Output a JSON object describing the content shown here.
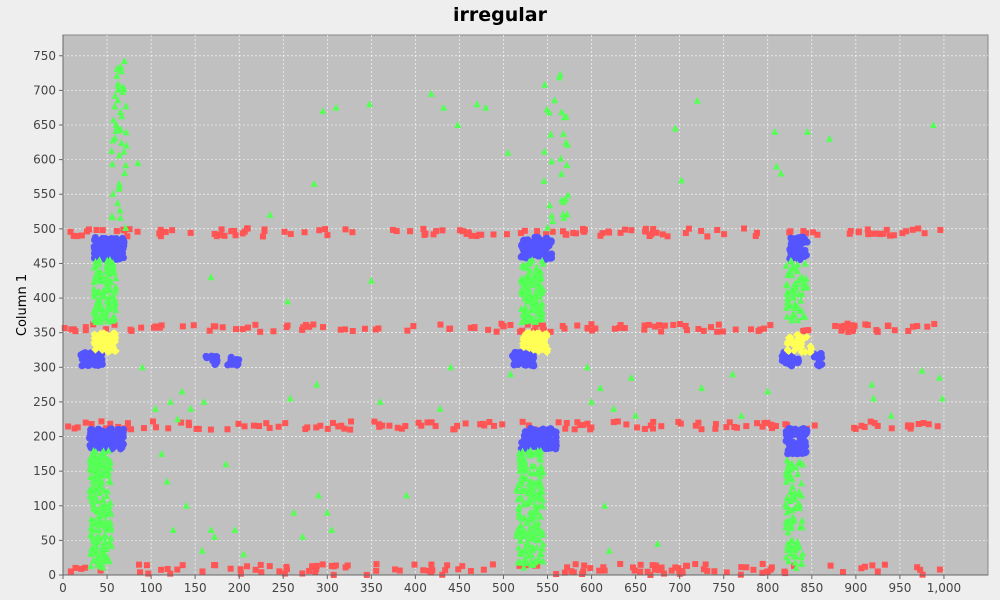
{
  "chart_data": {
    "type": "scatter",
    "title": "irregular",
    "xlabel": "",
    "ylabel": "Column 1",
    "xlim": [
      0,
      1050
    ],
    "ylim": [
      0,
      780
    ],
    "x_ticks": [
      0,
      50,
      100,
      150,
      200,
      250,
      300,
      350,
      400,
      450,
      500,
      550,
      600,
      650,
      700,
      750,
      800,
      850,
      900,
      950,
      1000
    ],
    "x_tick_labels": [
      "0",
      "50",
      "100",
      "150",
      "200",
      "250",
      "300",
      "350",
      "400",
      "450",
      "500",
      "550",
      "600",
      "650",
      "700",
      "750",
      "800",
      "850",
      "900",
      "950",
      "1,000"
    ],
    "y_ticks": [
      0,
      50,
      100,
      150,
      200,
      250,
      300,
      350,
      400,
      450,
      500,
      550,
      600,
      650,
      700,
      750
    ],
    "grid": true,
    "legend": "none",
    "colors": {
      "background": "#c0c0c0",
      "red": "#ff5555",
      "blue": "#5555ff",
      "green": "#55ff55",
      "yellow": "#ffff55"
    },
    "series": [
      {
        "marker": "square",
        "color": "#ff5555",
        "clusters": [
          {
            "y_center": 8,
            "y_spread": 8,
            "x_range": [
              0,
              1000
            ],
            "count": 130
          },
          {
            "y_center": 216,
            "y_spread": 6,
            "x_range": [
              0,
              1000
            ],
            "count": 130
          },
          {
            "y_center": 357,
            "y_spread": 6,
            "x_range": [
              0,
              1000
            ],
            "count": 130
          },
          {
            "y_center": 495,
            "y_spread": 6,
            "x_range": [
              0,
              1000
            ],
            "count": 130
          }
        ]
      },
      {
        "marker": "circle",
        "color": "#5555ff",
        "clusters": [
          {
            "x_range": [
              30,
              70
            ],
            "y_range": [
              182,
              212
            ],
            "count": 120
          },
          {
            "x_range": [
              520,
              560
            ],
            "y_range": [
              182,
              212
            ],
            "count": 120
          },
          {
            "x_range": [
              820,
              845
            ],
            "y_range": [
              175,
              212
            ],
            "count": 80
          },
          {
            "x_range": [
              35,
              70
            ],
            "y_range": [
              455,
              488
            ],
            "count": 100
          },
          {
            "x_range": [
              520,
              555
            ],
            "y_range": [
              455,
              488
            ],
            "count": 100
          },
          {
            "x_range": [
              825,
              845
            ],
            "y_range": [
              455,
              488
            ],
            "count": 50
          },
          {
            "x_range": [
              20,
              45
            ],
            "y_range": [
              302,
              322
            ],
            "count": 50
          },
          {
            "x_range": [
              510,
              535
            ],
            "y_range": [
              302,
              322
            ],
            "count": 50
          },
          {
            "x_range": [
              815,
              835
            ],
            "y_range": [
              302,
              322
            ],
            "count": 30
          },
          {
            "x_range": [
              162,
              175
            ],
            "y_range": [
              302,
              318
            ],
            "count": 15
          },
          {
            "x_range": [
              185,
              200
            ],
            "y_range": [
              302,
              318
            ],
            "count": 15
          },
          {
            "x_range": [
              852,
              862
            ],
            "y_range": [
              300,
              322
            ],
            "count": 12
          }
        ]
      },
      {
        "marker": "diamond",
        "color": "#ffff55",
        "clusters": [
          {
            "x_range": [
              35,
              60
            ],
            "y_range": [
              322,
              350
            ],
            "count": 70
          },
          {
            "x_range": [
              522,
              550
            ],
            "y_range": [
              322,
              350
            ],
            "count": 70
          },
          {
            "x_range": [
              822,
              850
            ],
            "y_range": [
              322,
              350
            ],
            "count": 35
          }
        ]
      },
      {
        "marker": "triangle",
        "color": "#55ff55",
        "clusters": [
          {
            "x_range": [
              30,
              55
            ],
            "y_range": [
              10,
              180
            ],
            "count": 200
          },
          {
            "x_range": [
              515,
              545
            ],
            "y_range": [
              10,
              180
            ],
            "count": 200
          },
          {
            "x_range": [
              820,
              840
            ],
            "y_range": [
              10,
              170
            ],
            "count": 90
          },
          {
            "x_range": [
              35,
              60
            ],
            "y_range": [
              365,
              455
            ],
            "count": 130
          },
          {
            "x_range": [
              520,
              545
            ],
            "y_range": [
              365,
              455
            ],
            "count": 130
          },
          {
            "x_range": [
              820,
              845
            ],
            "y_range": [
              365,
              455
            ],
            "count": 60
          },
          {
            "x_range": [
              55,
              72
            ],
            "y_range": [
              500,
              745
            ],
            "count": 45
          },
          {
            "x_range": [
              545,
              575
            ],
            "y_range": [
              500,
              740
            ],
            "count": 30
          }
        ],
        "scattered": [
          [
            85,
            595
          ],
          [
            90,
            300
          ],
          [
            105,
            240
          ],
          [
            112,
            175
          ],
          [
            118,
            135
          ],
          [
            122,
            250
          ],
          [
            125,
            65
          ],
          [
            130,
            225
          ],
          [
            135,
            265
          ],
          [
            140,
            100
          ],
          [
            145,
            240
          ],
          [
            158,
            35
          ],
          [
            160,
            250
          ],
          [
            168,
            430
          ],
          [
            168,
            65
          ],
          [
            172,
            55
          ],
          [
            185,
            160
          ],
          [
            195,
            65
          ],
          [
            205,
            30
          ],
          [
            235,
            520
          ],
          [
            255,
            395
          ],
          [
            258,
            255
          ],
          [
            262,
            90
          ],
          [
            272,
            55
          ],
          [
            285,
            565
          ],
          [
            288,
            275
          ],
          [
            290,
            115
          ],
          [
            295,
            670
          ],
          [
            300,
            90
          ],
          [
            305,
            65
          ],
          [
            310,
            675
          ],
          [
            348,
            680
          ],
          [
            350,
            425
          ],
          [
            360,
            250
          ],
          [
            390,
            115
          ],
          [
            418,
            695
          ],
          [
            428,
            240
          ],
          [
            432,
            675
          ],
          [
            440,
            300
          ],
          [
            448,
            650
          ],
          [
            470,
            680
          ],
          [
            480,
            675
          ],
          [
            505,
            610
          ],
          [
            508,
            290
          ],
          [
            595,
            300
          ],
          [
            600,
            250
          ],
          [
            610,
            270
          ],
          [
            615,
            100
          ],
          [
            620,
            35
          ],
          [
            625,
            240
          ],
          [
            645,
            285
          ],
          [
            650,
            230
          ],
          [
            675,
            45
          ],
          [
            695,
            645
          ],
          [
            702,
            570
          ],
          [
            720,
            685
          ],
          [
            725,
            270
          ],
          [
            760,
            290
          ],
          [
            770,
            230
          ],
          [
            800,
            265
          ],
          [
            808,
            640
          ],
          [
            810,
            590
          ],
          [
            815,
            580
          ],
          [
            845,
            640
          ],
          [
            870,
            630
          ],
          [
            918,
            275
          ],
          [
            920,
            255
          ],
          [
            975,
            295
          ],
          [
            988,
            650
          ],
          [
            995,
            285
          ],
          [
            998,
            255
          ],
          [
            940,
            230
          ]
        ]
      }
    ]
  }
}
